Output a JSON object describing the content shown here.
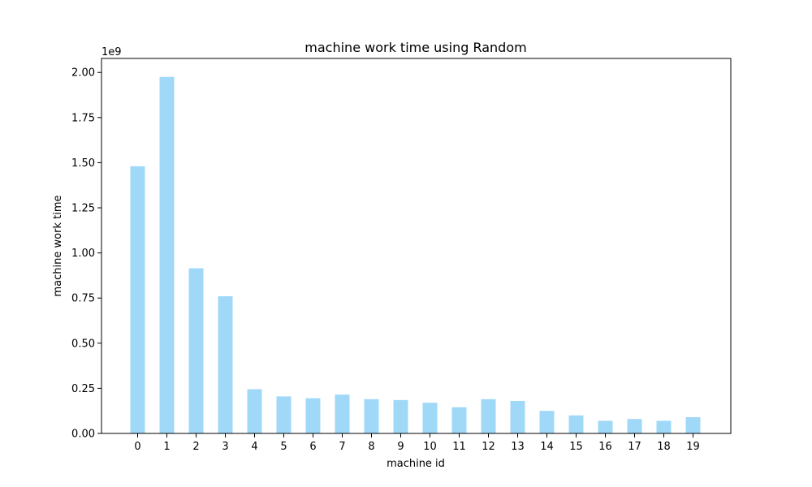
{
  "chart_data": {
    "type": "bar",
    "title": "machine work time using Random",
    "xlabel": "machine id",
    "ylabel": "machine work time",
    "y_scale_label": "1e9",
    "categories": [
      "0",
      "1",
      "2",
      "3",
      "4",
      "5",
      "6",
      "7",
      "8",
      "9",
      "10",
      "11",
      "12",
      "13",
      "14",
      "15",
      "16",
      "17",
      "18",
      "19"
    ],
    "values": [
      1.48,
      1.975,
      0.915,
      0.76,
      0.245,
      0.205,
      0.195,
      0.215,
      0.19,
      0.185,
      0.17,
      0.145,
      0.19,
      0.18,
      0.125,
      0.1,
      0.07,
      0.08,
      0.07,
      0.09
    ],
    "value_unit_multiplier": 1000000000,
    "ylim": [
      0,
      2.0775
    ],
    "yticks": [
      "0.00",
      "0.25",
      "0.50",
      "0.75",
      "1.00",
      "1.25",
      "1.50",
      "1.75",
      "2.00"
    ],
    "bar_color": "#a0d8f8",
    "grid": false
  }
}
